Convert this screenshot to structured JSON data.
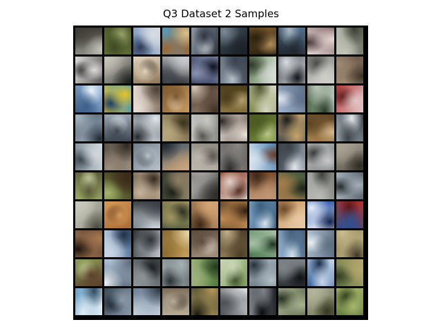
{
  "figure": {
    "title": "Q3 Dataset 2 Samples"
  },
  "grid": {
    "rows": 10,
    "cols": 10,
    "border_color": "#000000",
    "tiles": [
      {
        "bg": "#8b8a82",
        "fg": "#3f3d35",
        "accent": "#c9c7c0"
      },
      {
        "bg": "#6f7a3e",
        "fg": "#3d4a22",
        "accent": "#9aa26a"
      },
      {
        "bg": "#5f7fb0",
        "fg": "#d8dde4",
        "accent": "#2f3b55"
      },
      {
        "bg": "#4ea1c9",
        "fg": "#a0642f",
        "accent": "#d7c28e"
      },
      {
        "bg": "#8f98a6",
        "fg": "#2d3440",
        "accent": "#c6cbd3"
      },
      {
        "bg": "#3c4a56",
        "fg": "#1c2229",
        "accent": "#7b8a96"
      },
      {
        "bg": "#7a5a2e",
        "fg": "#2b2110",
        "accent": "#b08d57"
      },
      {
        "bg": "#53708e",
        "fg": "#20262d",
        "accent": "#a9b7c4"
      },
      {
        "bg": "#8a6e70",
        "fg": "#e4d7d4",
        "accent": "#4b3a3b"
      },
      {
        "bg": "#6a7060",
        "fg": "#c2c4b8",
        "accent": "#3a3d33"
      },
      {
        "bg": "#5b5a58",
        "fg": "#dcdbd9",
        "accent": "#2a2a2a"
      },
      {
        "bg": "#4d4f4a",
        "fg": "#c7c3b8",
        "accent": "#1d1e1b"
      },
      {
        "bg": "#8c7554",
        "fg": "#e2d5c0",
        "accent": "#3b3122"
      },
      {
        "bg": "#1a1d20",
        "fg": "#c7c9cc",
        "accent": "#434850"
      },
      {
        "bg": "#27314d",
        "fg": "#8a93b2",
        "accent": "#0f1422"
      },
      {
        "bg": "#7e8c99",
        "fg": "#3a4450",
        "accent": "#b6c0c9"
      },
      {
        "bg": "#6c8b62",
        "fg": "#d6dbd4",
        "accent": "#2f3a2b"
      },
      {
        "bg": "#3e454f",
        "fg": "#d9dce0",
        "accent": "#121519"
      },
      {
        "bg": "#8a8a84",
        "fg": "#cfcfca",
        "accent": "#4b4b47"
      },
      {
        "bg": "#6d5a49",
        "fg": "#a08b74",
        "accent": "#3a2f25"
      },
      {
        "bg": "#9ec0e2",
        "fg": "#3d5f8a",
        "accent": "#ecf2f8"
      },
      {
        "bg": "#2d8fcb",
        "fg": "#e8c22a",
        "accent": "#1d3f66"
      },
      {
        "bg": "#8b7a6a",
        "fg": "#e5dcd3",
        "accent": "#4c3f34"
      },
      {
        "bg": "#c8995e",
        "fg": "#7a5630",
        "accent": "#ead1ad"
      },
      {
        "bg": "#9c8570",
        "fg": "#3e3026",
        "accent": "#d8c6b4"
      },
      {
        "bg": "#8a7340",
        "fg": "#4a3c1a",
        "accent": "#b9a373"
      },
      {
        "bg": "#7f8a4a",
        "fg": "#d7d7c2",
        "accent": "#4a5128"
      },
      {
        "bg": "#9fb3cf",
        "fg": "#5e6f87",
        "accent": "#e0e8f2"
      },
      {
        "bg": "#4f6c4c",
        "fg": "#b9c4b8",
        "accent": "#2a3a29"
      },
      {
        "bg": "#b33a3a",
        "fg": "#e3c6c6",
        "accent": "#5c1b1b"
      },
      {
        "bg": "#485868",
        "fg": "#a9b6c2",
        "accent": "#1e2832"
      },
      {
        "bg": "#9aa5b1",
        "fg": "#3d4650",
        "accent": "#dfe5ea"
      },
      {
        "bg": "#57616c",
        "fg": "#e4e7ea",
        "accent": "#20262c"
      },
      {
        "bg": "#6e5f3e",
        "fg": "#b6a57d",
        "accent": "#3a321f"
      },
      {
        "bg": "#8c8c86",
        "fg": "#c7c7c2",
        "accent": "#55554f"
      },
      {
        "bg": "#6a5a4e",
        "fg": "#e9e3dd",
        "accent": "#2e2621"
      },
      {
        "bg": "#7a8c3c",
        "fg": "#4a5a22",
        "accent": "#b8c585"
      },
      {
        "bg": "#46494c",
        "fg": "#c7a46a",
        "accent": "#191b1c"
      },
      {
        "bg": "#a8804c",
        "fg": "#5d4424",
        "accent": "#d5b98c"
      },
      {
        "bg": "#a9b2bc",
        "fg": "#3c434a",
        "accent": "#e7ebee"
      },
      {
        "bg": "#7d8a95",
        "fg": "#cfd6dc",
        "accent": "#3e4750"
      },
      {
        "bg": "#5d5247",
        "fg": "#9c8d7d",
        "accent": "#2d2621"
      },
      {
        "bg": "#707c88",
        "fg": "#b8c2cb",
        "accent": "#313840"
      },
      {
        "bg": "#4a5a6a",
        "fg": "#c7a37a",
        "accent": "#1d252d"
      },
      {
        "bg": "#8d8880",
        "fg": "#bdb7ad",
        "accent": "#4f4b45"
      },
      {
        "bg": "#5c5a58",
        "fg": "#8a8784",
        "accent": "#2c2b2a"
      },
      {
        "bg": "#4f86b5",
        "fg": "#d9e4ee",
        "accent": "#6e3a23"
      },
      {
        "bg": "#8e9aa6",
        "fg": "#3b424a",
        "accent": "#e2e7ec"
      },
      {
        "bg": "#727676",
        "fg": "#c7c9c9",
        "accent": "#3a3c3c"
      },
      {
        "bg": "#5f5a4f",
        "fg": "#a9a293",
        "accent": "#2c2a25"
      },
      {
        "bg": "#9cab64",
        "fg": "#5b5a3a",
        "accent": "#cfd6a7"
      },
      {
        "bg": "#6b7f3a",
        "fg": "#3d2a1a",
        "accent": "#a6b46e"
      },
      {
        "bg": "#6e5c48",
        "fg": "#c8b59c",
        "accent": "#33291f"
      },
      {
        "bg": "#39402f",
        "fg": "#8f8066",
        "accent": "#161a12"
      },
      {
        "bg": "#d8d6d2",
        "fg": "#2f2d2a",
        "accent": "#8b8883"
      },
      {
        "bg": "#8a3d2a",
        "fg": "#e0d2c8",
        "accent": "#4a1f15"
      },
      {
        "bg": "#7a4e2f",
        "fg": "#c09572",
        "accent": "#3c2617"
      },
      {
        "bg": "#3e5a3c",
        "fg": "#a77c4a",
        "accent": "#1a2619"
      },
      {
        "bg": "#7d7f79",
        "fg": "#b9bab5",
        "accent": "#40413d"
      },
      {
        "bg": "#5d6874",
        "fg": "#a3adb6",
        "accent": "#272d33"
      },
      {
        "bg": "#8c8c7c",
        "fg": "#c9c9bd",
        "accent": "#4a4a41"
      },
      {
        "bg": "#a66a35",
        "fg": "#d79a59",
        "accent": "#5a3518"
      },
      {
        "bg": "#cfd5db",
        "fg": "#3a3f44",
        "accent": "#7f878f"
      },
      {
        "bg": "#4f5a3e",
        "fg": "#a1955f",
        "accent": "#20261a"
      },
      {
        "bg": "#7f5b3a",
        "fg": "#d4a474",
        "accent": "#3c2816"
      },
      {
        "bg": "#6b4b2e",
        "fg": "#c18b50",
        "accent": "#321f11"
      },
      {
        "bg": "#7fa6c9",
        "fg": "#3b5e7c",
        "accent": "#d7e4ef"
      },
      {
        "bg": "#c79560",
        "fg": "#e8c9a3",
        "accent": "#6e4a29"
      },
      {
        "bg": "#2752a8",
        "fg": "#e7edf8",
        "accent": "#0f2350"
      },
      {
        "bg": "#b32e2a",
        "fg": "#2d4f8f",
        "accent": "#5e1512"
      },
      {
        "bg": "#5a4030",
        "fg": "#a97a52",
        "accent": "#1e140d"
      },
      {
        "bg": "#4b6d96",
        "fg": "#c8d5e4",
        "accent": "#1f3047"
      },
      {
        "bg": "#c2c6ca",
        "fg": "#2e3338",
        "accent": "#7d838a"
      },
      {
        "bg": "#c6a15a",
        "fg": "#8a6a33",
        "accent": "#ead6a9"
      },
      {
        "bg": "#a38f7c",
        "fg": "#5c4b3d",
        "accent": "#d6c8ba"
      },
      {
        "bg": "#8f7a55",
        "fg": "#4a3d28",
        "accent": "#c3b08b"
      },
      {
        "bg": "#4a7a4e",
        "fg": "#a8c1a8",
        "accent": "#213824"
      },
      {
        "bg": "#8fb0cf",
        "fg": "#44607c",
        "accent": "#d7e3ee"
      },
      {
        "bg": "#aebfd0",
        "fg": "#5d6f81",
        "accent": "#e8eef4"
      },
      {
        "bg": "#8a7d52",
        "fg": "#cbbf92",
        "accent": "#3f3824"
      },
      {
        "bg": "#8ea05a",
        "fg": "#5a3d2a",
        "accent": "#c3cf96"
      },
      {
        "bg": "#bcd0e4",
        "fg": "#5b6a7a",
        "accent": "#eef3f8"
      },
      {
        "bg": "#3e4447",
        "fg": "#8e9598",
        "accent": "#16191a"
      },
      {
        "bg": "#5d6a6e",
        "fg": "#a8b2b5",
        "accent": "#2b3234"
      },
      {
        "bg": "#4f7a3e",
        "fg": "#9db17a",
        "accent": "#233a1c"
      },
      {
        "bg": "#7c9d5a",
        "fg": "#c9d6b6",
        "accent": "#3b4e2a"
      },
      {
        "bg": "#5a6b76",
        "fg": "#b4c0c8",
        "accent": "#26313a"
      },
      {
        "bg": "#2e3236",
        "fg": "#7e8489",
        "accent": "#0f1113"
      },
      {
        "bg": "#3b67a3",
        "fg": "#c8d6e8",
        "accent": "#1a2f4d"
      },
      {
        "bg": "#6a7d4a",
        "fg": "#b3a56e",
        "accent": "#323d22"
      },
      {
        "bg": "#6aa3c9",
        "fg": "#e2edf4",
        "accent": "#2b4a61"
      },
      {
        "bg": "#3b4a57",
        "fg": "#8a9aa8",
        "accent": "#16202a"
      },
      {
        "bg": "#6b7f95",
        "fg": "#c0ccd8",
        "accent": "#2c3846"
      },
      {
        "bg": "#7d6f5a",
        "fg": "#b9ad97",
        "accent": "#3c342a"
      },
      {
        "bg": "#3a3f2a",
        "fg": "#b69a5c",
        "accent": "#15170f"
      },
      {
        "bg": "#e3e4e6",
        "fg": "#4d5156",
        "accent": "#9ca0a6"
      },
      {
        "bg": "#1f2226",
        "fg": "#7d8288",
        "accent": "#0a0b0c"
      },
      {
        "bg": "#5a6a4a",
        "fg": "#a9b292",
        "accent": "#283120"
      },
      {
        "bg": "#6d7052",
        "fg": "#b2b49a",
        "accent": "#34361f"
      },
      {
        "bg": "#5e7a3a",
        "fg": "#a8b56e",
        "accent": "#2a3a18"
      }
    ]
  }
}
